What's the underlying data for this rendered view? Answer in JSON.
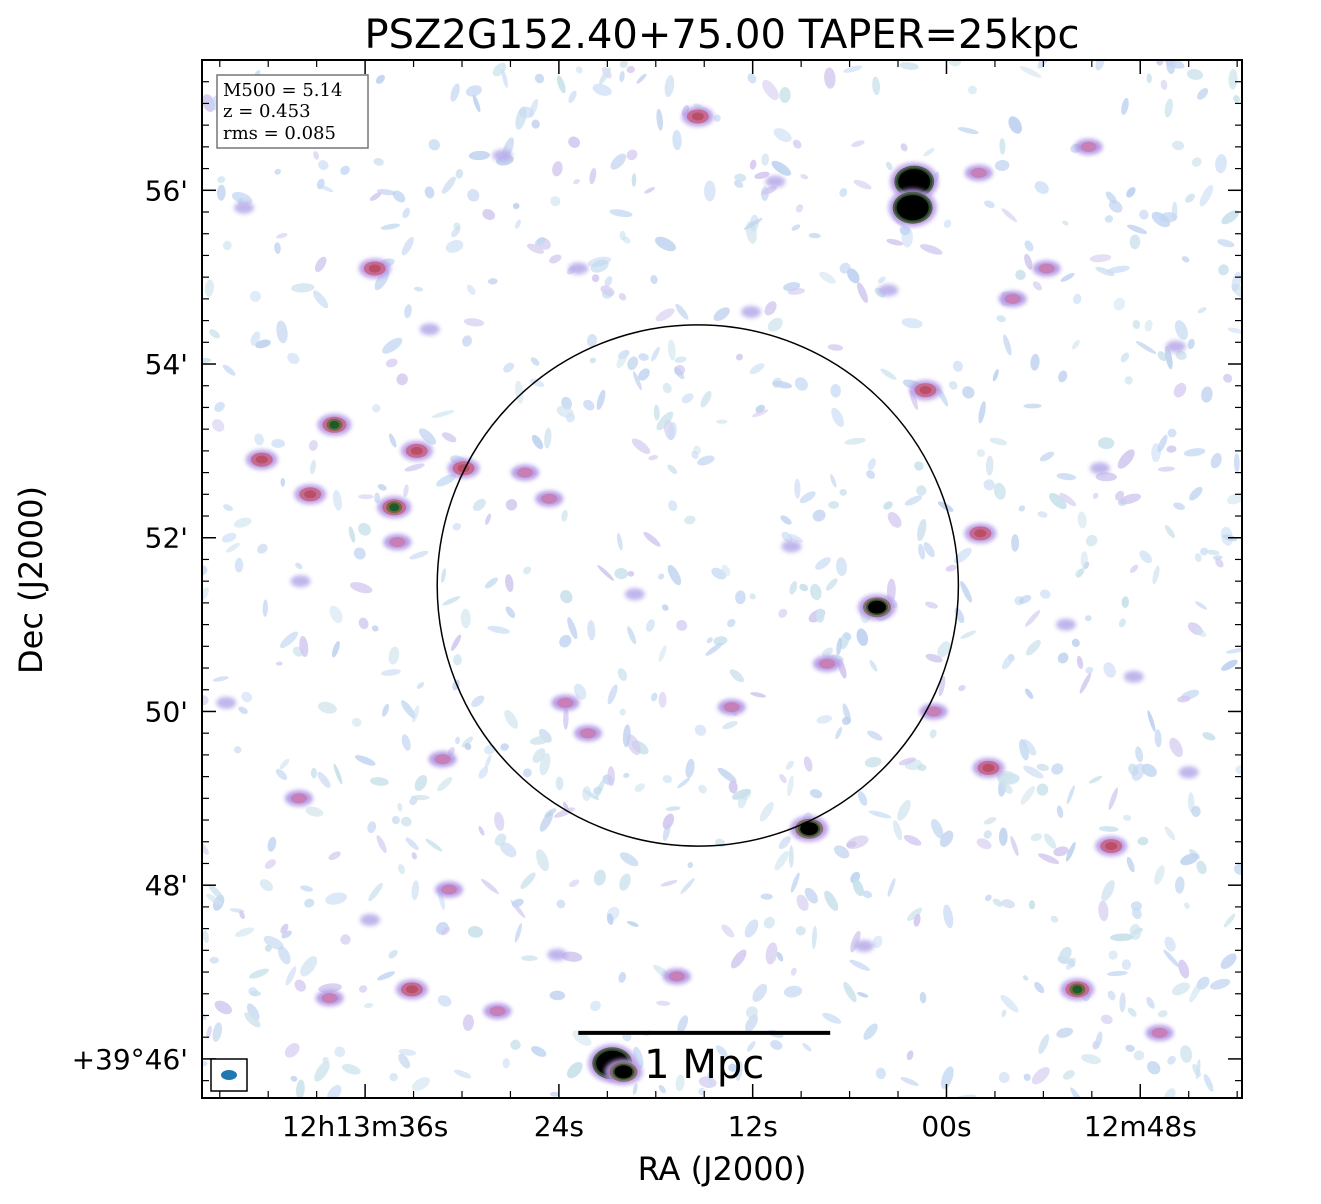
{
  "chart_data": {
    "type": "heatmap",
    "title": "PSZ2G152.40+75.00 TAPER=25kpc",
    "xlabel": "RA (J2000)",
    "ylabel": "Dec (J2000)",
    "x_ticks": [
      {
        "label": "12h13m36s",
        "ra_sec": 36
      },
      {
        "label": "24s",
        "ra_sec": 24
      },
      {
        "label": "12s",
        "ra_sec": 12
      },
      {
        "label": "00s",
        "ra_sec": 0
      },
      {
        "label": "12m48s",
        "ra_sec": -12
      }
    ],
    "y_ticks": [
      {
        "label": "+39°46'",
        "dec_arcmin": 46
      },
      {
        "label": "48'",
        "dec_arcmin": 48
      },
      {
        "label": "50'",
        "dec_arcmin": 50
      },
      {
        "label": "52'",
        "dec_arcmin": 52
      },
      {
        "label": "54'",
        "dec_arcmin": 54
      },
      {
        "label": "56'",
        "dec_arcmin": 56
      }
    ],
    "xlim_ra_sec": [
      46.1,
      -18.3
    ],
    "ylim_dec_arcmin": [
      45.55,
      57.5
    ],
    "info_box": {
      "lines": [
        "M500 = 5.14",
        "z = 0.453",
        "rms = 0.085"
      ],
      "placement": "top-left"
    },
    "circle": {
      "center_ra_sec": 15.4,
      "center_dec_arcmin": 51.45,
      "radius_arcmin": 3.0
    },
    "scale_bar": {
      "label": "1 Mpc",
      "ra_start_sec": 22.8,
      "ra_end_sec": 7.2,
      "dec_arcmin": 46.3
    },
    "beam": {
      "placement": "bottom-left",
      "color": "#1f77b4"
    },
    "colormap": "cubehelix (light)",
    "sources": [
      {
        "ra": 2.0,
        "dec": 56.1,
        "level": 6
      },
      {
        "ra": 2.1,
        "dec": 55.8,
        "level": 6
      },
      {
        "ra": 20.7,
        "dec": 45.95,
        "level": 6
      },
      {
        "ra": 20.0,
        "dec": 45.85,
        "level": 5
      },
      {
        "ra": 4.3,
        "dec": 51.2,
        "level": 5
      },
      {
        "ra": 8.5,
        "dec": 48.65,
        "level": 5
      },
      {
        "ra": 34.2,
        "dec": 52.35,
        "level": 4
      },
      {
        "ra": 37.9,
        "dec": 53.3,
        "level": 4
      },
      {
        "ra": -8.1,
        "dec": 46.8,
        "level": 4
      },
      {
        "ra": -10.2,
        "dec": 48.45,
        "level": 3
      },
      {
        "ra": -2.6,
        "dec": 49.35,
        "level": 3
      },
      {
        "ra": 32.8,
        "dec": 53.0,
        "level": 3
      },
      {
        "ra": -2.1,
        "dec": 52.05,
        "level": 3
      },
      {
        "ra": 1.3,
        "dec": 53.7,
        "level": 3
      },
      {
        "ra": 15.4,
        "dec": 56.85,
        "level": 3
      },
      {
        "ra": 29.9,
        "dec": 52.8,
        "level": 3
      },
      {
        "ra": 35.4,
        "dec": 55.1,
        "level": 3
      },
      {
        "ra": 42.4,
        "dec": 52.9,
        "level": 3
      },
      {
        "ra": 39.4,
        "dec": 52.5,
        "level": 3
      },
      {
        "ra": 34.0,
        "dec": 51.95,
        "level": 2
      },
      {
        "ra": 22.2,
        "dec": 49.75,
        "level": 2
      },
      {
        "ra": 23.6,
        "dec": 50.1,
        "level": 2
      },
      {
        "ra": 33.1,
        "dec": 46.8,
        "level": 3
      },
      {
        "ra": 31.2,
        "dec": 49.45,
        "level": 2
      },
      {
        "ra": 40.1,
        "dec": 49.0,
        "level": 2
      },
      {
        "ra": 30.8,
        "dec": 47.95,
        "level": 2
      },
      {
        "ra": -6.2,
        "dec": 55.1,
        "level": 2
      },
      {
        "ra": -4.1,
        "dec": 54.75,
        "level": 2
      },
      {
        "ra": -8.8,
        "dec": 56.5,
        "level": 2
      },
      {
        "ra": -2.0,
        "dec": 56.2,
        "level": 2
      },
      {
        "ra": -13.2,
        "dec": 46.3,
        "level": 2
      },
      {
        "ra": 0.8,
        "dec": 50.0,
        "level": 2
      },
      {
        "ra": 24.6,
        "dec": 52.45,
        "level": 2
      },
      {
        "ra": 26.1,
        "dec": 52.75,
        "level": 2
      },
      {
        "ra": 7.4,
        "dec": 50.55,
        "level": 2
      },
      {
        "ra": 16.7,
        "dec": 46.95,
        "level": 2
      },
      {
        "ra": 13.3,
        "dec": 50.05,
        "level": 2
      },
      {
        "ra": 27.8,
        "dec": 46.55,
        "level": 2
      },
      {
        "ra": 38.2,
        "dec": 46.7,
        "level": 2
      },
      {
        "ra": 24.1,
        "dec": 47.2,
        "level": 1
      },
      {
        "ra": 35.7,
        "dec": 47.6,
        "level": 1
      },
      {
        "ra": 40.0,
        "dec": 51.5,
        "level": 1
      },
      {
        "ra": 32.0,
        "dec": 54.4,
        "level": 1
      },
      {
        "ra": 22.8,
        "dec": 55.1,
        "level": 1
      },
      {
        "ra": 12.1,
        "dec": 54.6,
        "level": 1
      },
      {
        "ra": 9.6,
        "dec": 51.9,
        "level": 1
      },
      {
        "ra": 19.3,
        "dec": 51.35,
        "level": 1
      },
      {
        "ra": 5.1,
        "dec": 47.3,
        "level": 1
      },
      {
        "ra": -7.4,
        "dec": 51.0,
        "level": 1
      },
      {
        "ra": -11.6,
        "dec": 50.4,
        "level": 1
      },
      {
        "ra": -9.5,
        "dec": 52.8,
        "level": 1
      },
      {
        "ra": -14.2,
        "dec": 54.2,
        "level": 1
      },
      {
        "ra": -15.0,
        "dec": 49.3,
        "level": 1
      },
      {
        "ra": 43.5,
        "dec": 55.8,
        "level": 1
      },
      {
        "ra": 44.6,
        "dec": 50.1,
        "level": 1
      },
      {
        "ra": 10.6,
        "dec": 56.1,
        "level": 1
      },
      {
        "ra": 27.5,
        "dec": 56.4,
        "level": 1
      },
      {
        "ra": 3.6,
        "dec": 54.85,
        "level": 1
      }
    ]
  }
}
